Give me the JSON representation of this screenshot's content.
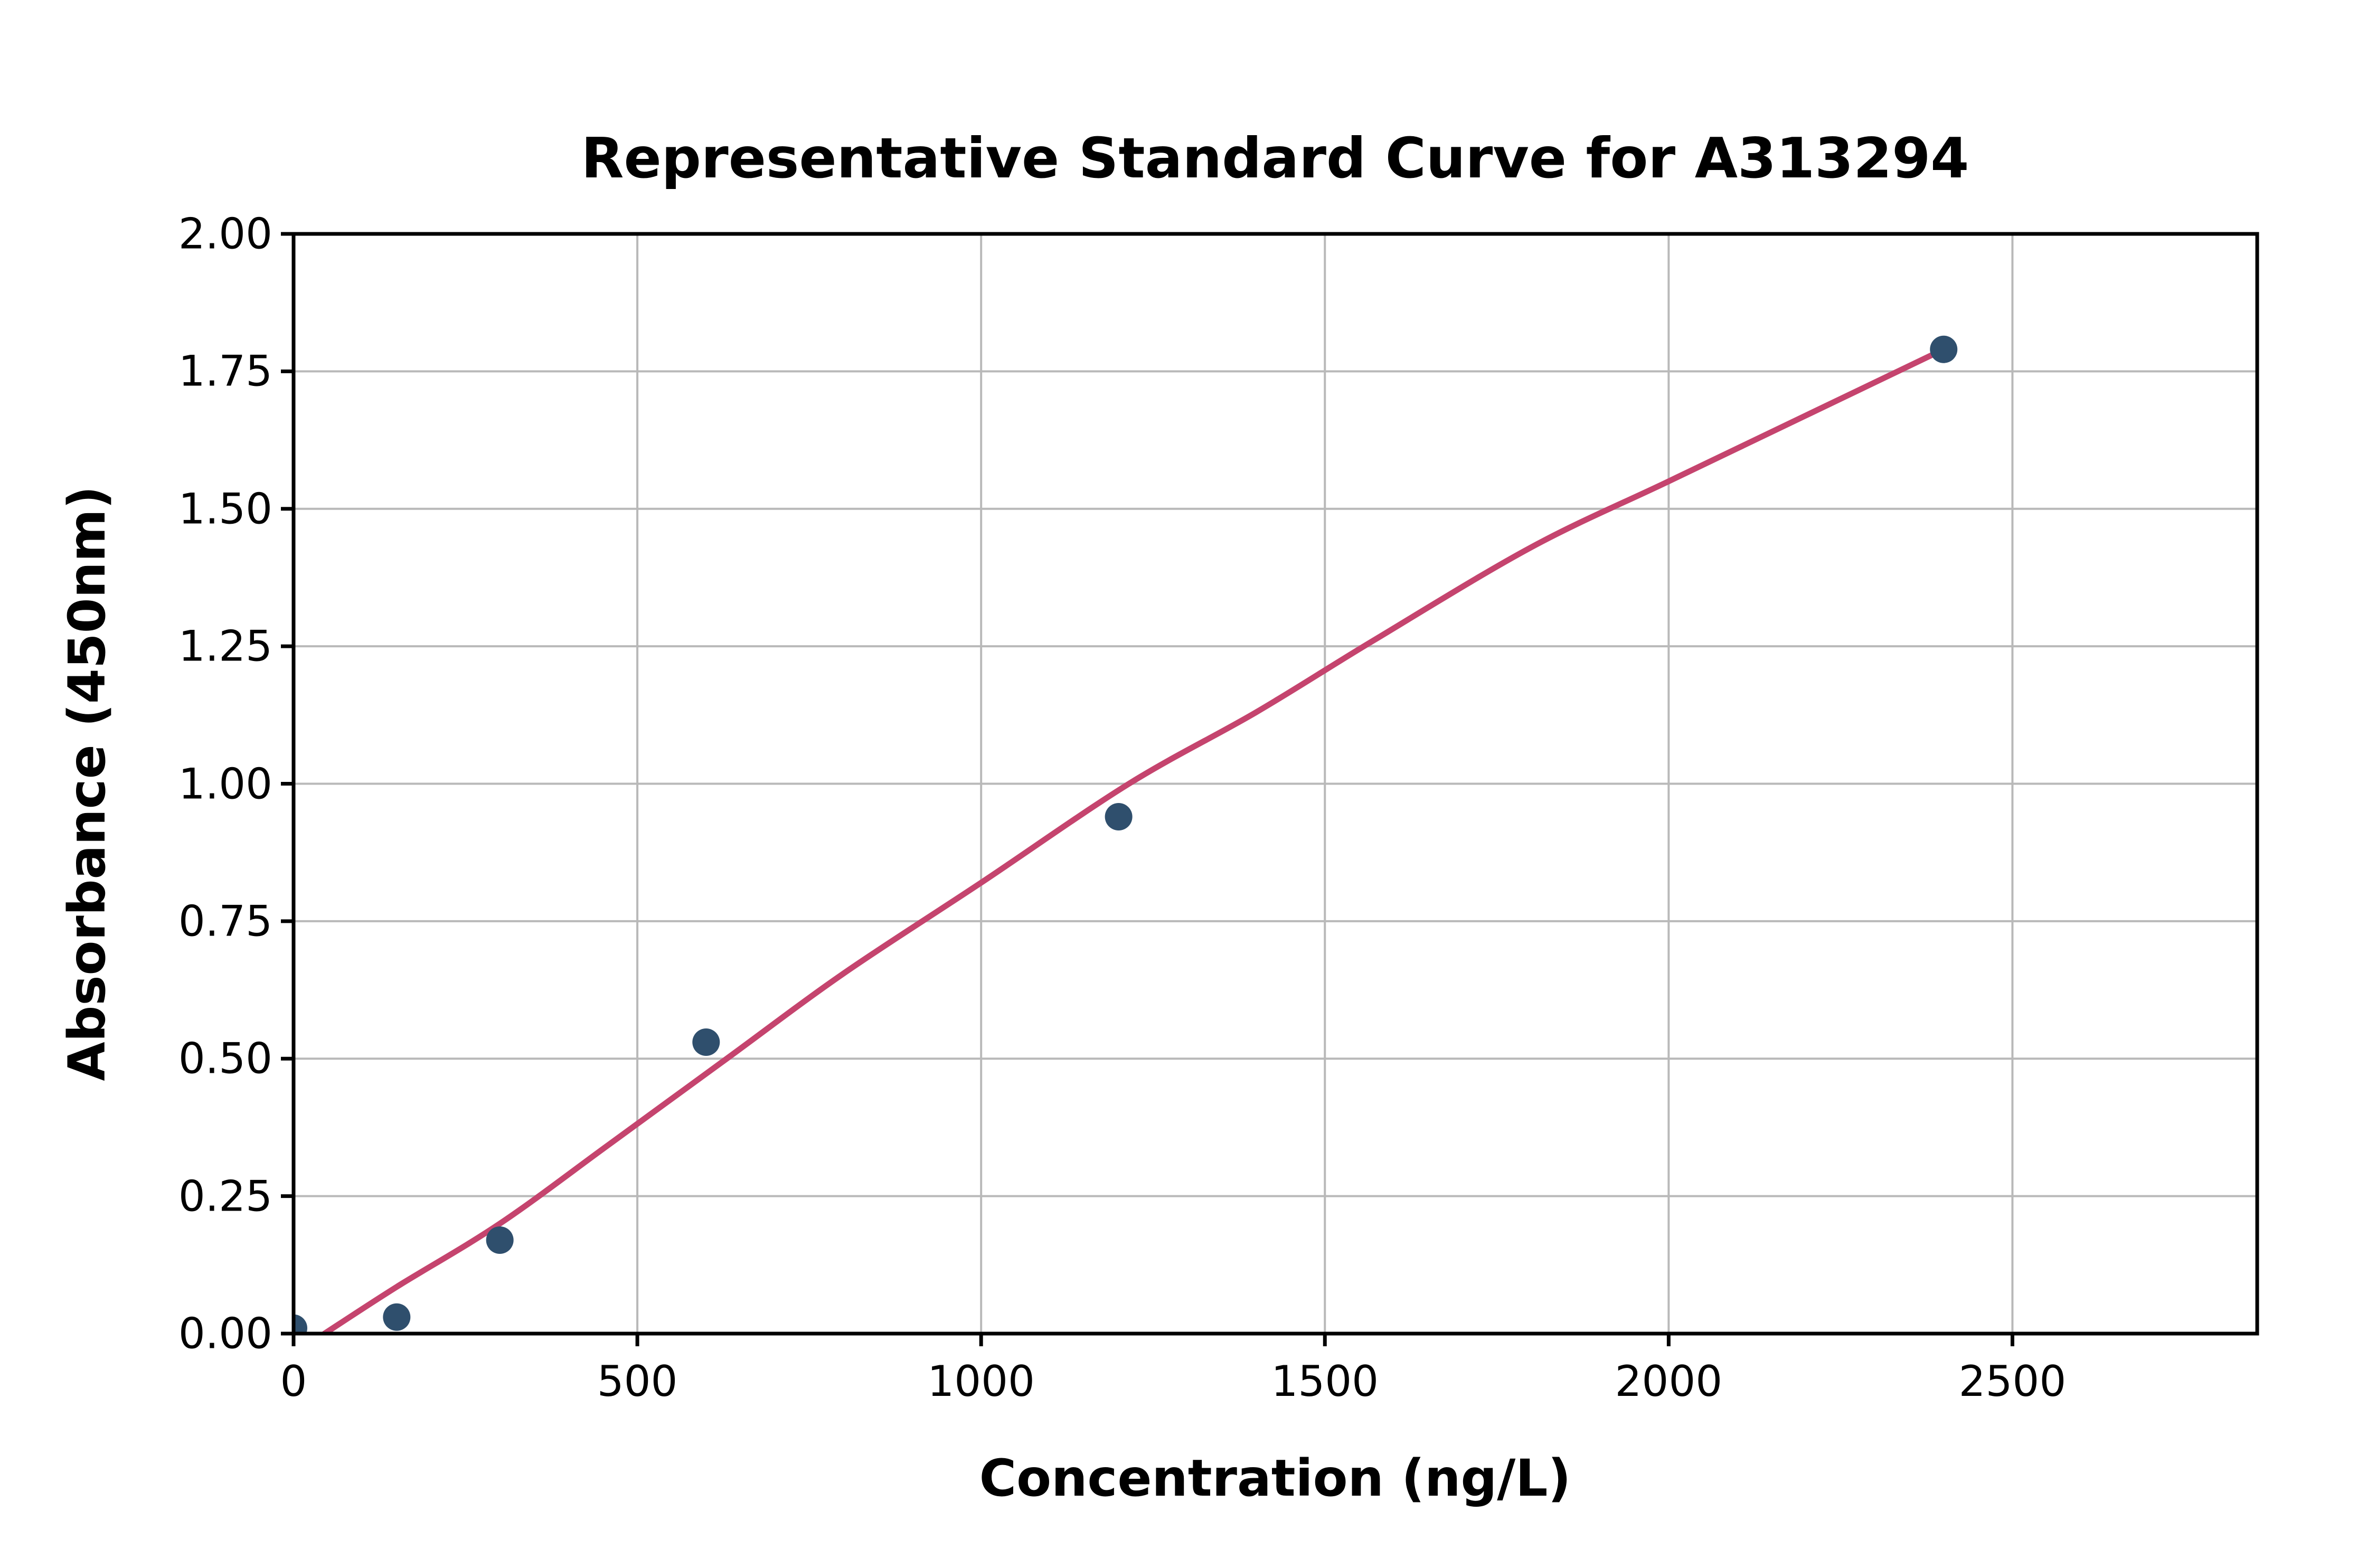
{
  "chart_data": {
    "type": "scatter",
    "title": "Representative Standard Curve for A313294",
    "xlabel": "Concentration (ng/L)",
    "ylabel": "Absorbance (450nm)",
    "xlim": [
      0,
      2856
    ],
    "ylim": [
      0,
      2.0
    ],
    "grid": true,
    "legend": "none",
    "x_ticks": {
      "values": [
        0,
        500,
        1000,
        1500,
        2000,
        2500
      ],
      "labels": [
        "0",
        "500",
        "1000",
        "1500",
        "2000",
        "2500"
      ]
    },
    "y_ticks": {
      "values": [
        0,
        0.25,
        0.5,
        0.75,
        1.0,
        1.25,
        1.5,
        1.75,
        2.0
      ],
      "labels": [
        "0.00",
        "0.25",
        "0.50",
        "0.75",
        "1.00",
        "1.25",
        "1.50",
        "1.75",
        "2.00"
      ]
    },
    "series": [
      {
        "name": "standard-points",
        "type": "scatter",
        "x": [
          0,
          150,
          300,
          600,
          1200,
          2400
        ],
        "y": [
          0.01,
          0.03,
          0.17,
          0.53,
          0.94,
          1.79
        ]
      },
      {
        "name": "fit-curve",
        "type": "line",
        "points": [
          [
            45,
            0.0
          ],
          [
            150,
            0.085
          ],
          [
            300,
            0.2
          ],
          [
            460,
            0.345
          ],
          [
            630,
            0.5
          ],
          [
            800,
            0.655
          ],
          [
            1000,
            0.82
          ],
          [
            1215,
            1.0
          ],
          [
            1400,
            1.13
          ],
          [
            1570,
            1.26
          ],
          [
            1800,
            1.43
          ],
          [
            2000,
            1.55
          ],
          [
            2200,
            1.67
          ],
          [
            2400,
            1.79
          ]
        ]
      }
    ],
    "colors": {
      "point": "#2F4F6D",
      "curve": "#C5446E",
      "grid": "#B9B9B9",
      "axis": "#000000",
      "background": "#FFFFFF"
    }
  }
}
